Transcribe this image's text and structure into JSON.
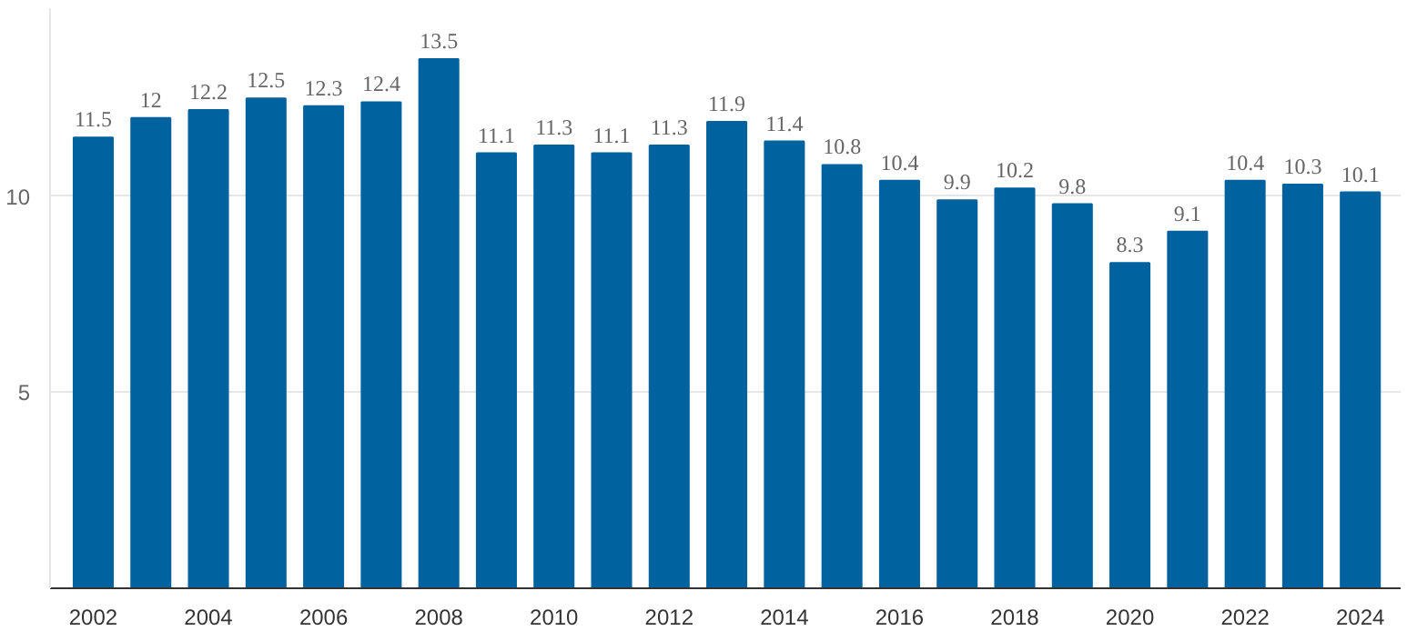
{
  "chart_data": {
    "type": "bar",
    "categories": [
      "2002",
      null,
      "2004",
      null,
      "2006",
      null,
      "2008",
      null,
      "2010",
      null,
      "2012",
      null,
      "2014",
      null,
      "2016",
      null,
      "2018",
      null,
      "2020",
      null,
      "2022",
      null,
      "2024"
    ],
    "values": [
      11.5,
      12,
      12.2,
      12.5,
      12.3,
      12.4,
      13.5,
      11.1,
      11.3,
      11.1,
      11.3,
      11.9,
      11.4,
      10.8,
      10.4,
      9.9,
      10.2,
      9.8,
      8.3,
      9.1,
      10.4,
      10.3,
      10.1
    ],
    "color": "#00629f",
    "ylim": [
      0,
      14.8
    ],
    "yticks": [
      5,
      10
    ],
    "grid": "y",
    "data_labels": true
  }
}
